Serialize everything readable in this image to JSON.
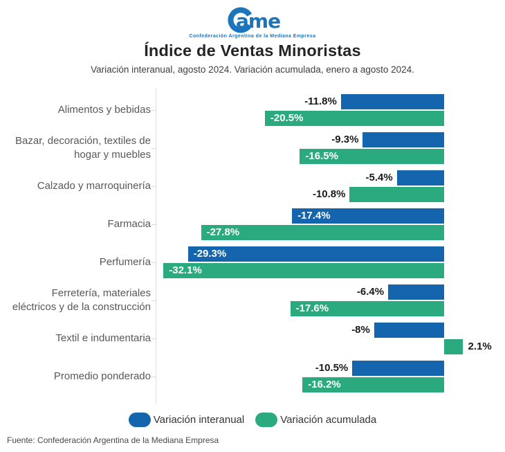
{
  "logo": {
    "name": "CAME",
    "mark_text": "ame",
    "subtext": "Confederación Argentina de la Mediana Empresa",
    "color": "#1b75bc"
  },
  "chart_data": {
    "type": "bar",
    "orientation": "horizontal",
    "title": "Índice de Ventas Minoristas",
    "subtitle": "Variación interanual, agosto 2024. Variación acumulada, enero a agosto 2024.",
    "categories": [
      [
        "Alimentos y bebidas"
      ],
      [
        "Bazar, decoración, textiles de",
        "hogar y muebles"
      ],
      [
        "Calzado y marroquinería"
      ],
      [
        "Farmacia"
      ],
      [
        "Perfumería"
      ],
      [
        "Ferretería, materiales",
        "eléctricos y de la construcción"
      ],
      [
        "Textil e indumentaria"
      ],
      [
        "Promedio ponderado"
      ]
    ],
    "series": [
      {
        "name": "Variación interanual",
        "color": "#1565ae",
        "values": [
          -11.8,
          -9.3,
          -5.4,
          -17.4,
          -29.3,
          -6.4,
          -8,
          -10.5
        ],
        "labels": [
          "-11.8%",
          "-9.3%",
          "-5.4%",
          "-17.4%",
          "-29.3%",
          "-6.4%",
          "-8%",
          "-10.5%"
        ]
      },
      {
        "name": "Variación acumulada",
        "color": "#2baa80",
        "values": [
          -20.5,
          -16.5,
          -10.8,
          -27.8,
          -32.1,
          -17.6,
          2.1,
          -16.2
        ],
        "labels": [
          "-20.5%",
          "-16.5%",
          "-10.8%",
          "-27.8%",
          "-32.1%",
          "-17.6%",
          "2.1%",
          "-16.2%"
        ]
      }
    ],
    "xlim": [
      -33,
      5.5
    ],
    "grid": false,
    "legend_position": "bottom"
  },
  "footer": {
    "source": "Fuente: Confederación Argentina de la Mediana Empresa"
  }
}
